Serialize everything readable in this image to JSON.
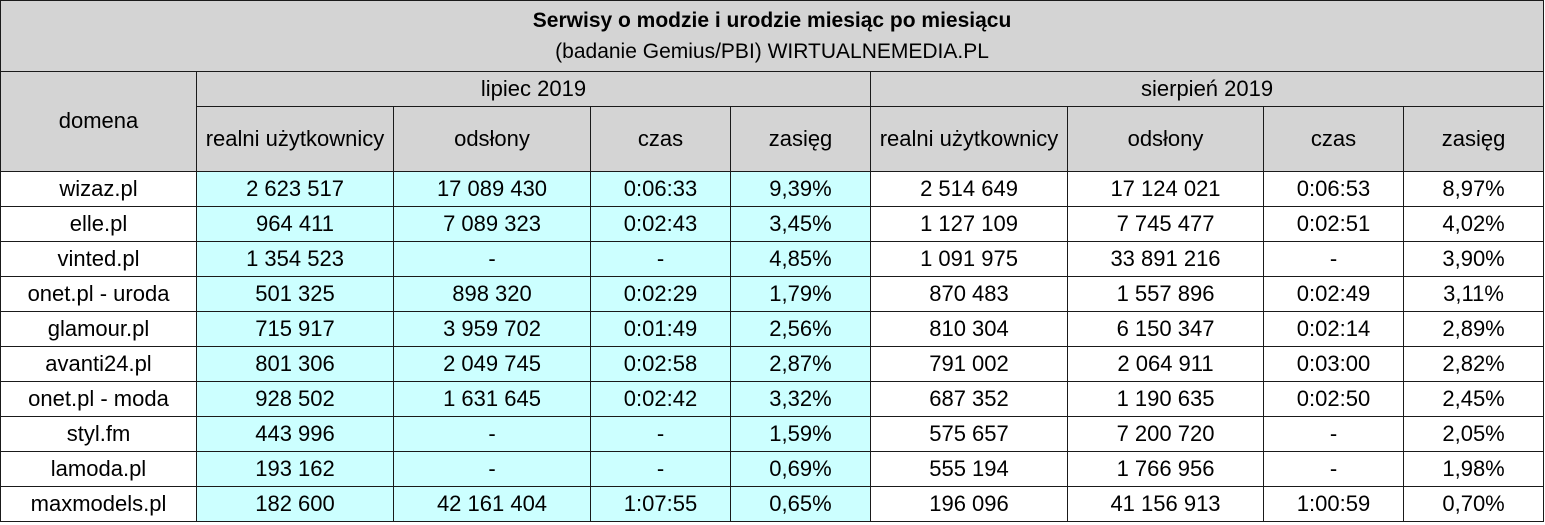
{
  "title": "Serwisy o modzie i urodzie miesiąc po miesiącu",
  "subtitle": "(badanie Gemius/PBI) WIRTUALNEMEDIA.PL",
  "header": {
    "domain": "domena",
    "months": [
      "lipiec 2019",
      "sierpień 2019"
    ],
    "columns": [
      "realni użytkownicy",
      "odsłony",
      "czas",
      "zasięg"
    ]
  },
  "rows": [
    {
      "domain": "wizaz.pl",
      "jul": [
        "2 623 517",
        "17 089 430",
        "0:06:33",
        "9,39%"
      ],
      "aug": [
        "2 514 649",
        "17 124 021",
        "0:06:53",
        "8,97%"
      ]
    },
    {
      "domain": "elle.pl",
      "jul": [
        "964 411",
        "7 089 323",
        "0:02:43",
        "3,45%"
      ],
      "aug": [
        "1 127 109",
        "7 745 477",
        "0:02:51",
        "4,02%"
      ]
    },
    {
      "domain": "vinted.pl",
      "jul": [
        "1 354 523",
        "-",
        "-",
        "4,85%"
      ],
      "aug": [
        "1 091 975",
        "33 891 216",
        "-",
        "3,90%"
      ]
    },
    {
      "domain": "onet.pl - uroda",
      "jul": [
        "501 325",
        "898 320",
        "0:02:29",
        "1,79%"
      ],
      "aug": [
        "870 483",
        "1 557 896",
        "0:02:49",
        "3,11%"
      ]
    },
    {
      "domain": "glamour.pl",
      "jul": [
        "715 917",
        "3 959 702",
        "0:01:49",
        "2,56%"
      ],
      "aug": [
        "810 304",
        "6 150 347",
        "0:02:14",
        "2,89%"
      ]
    },
    {
      "domain": "avanti24.pl",
      "jul": [
        "801 306",
        "2 049 745",
        "0:02:58",
        "2,87%"
      ],
      "aug": [
        "791 002",
        "2 064 911",
        "0:03:00",
        "2,82%"
      ]
    },
    {
      "domain": "onet.pl - moda",
      "jul": [
        "928 502",
        "1 631 645",
        "0:02:42",
        "3,32%"
      ],
      "aug": [
        "687 352",
        "1 190 635",
        "0:02:50",
        "2,45%"
      ]
    },
    {
      "domain": "styl.fm",
      "jul": [
        "443 996",
        "-",
        "-",
        "1,59%"
      ],
      "aug": [
        "575 657",
        "7 200 720",
        "-",
        "2,05%"
      ]
    },
    {
      "domain": "lamoda.pl",
      "jul": [
        "193 162",
        "-",
        "-",
        "0,69%"
      ],
      "aug": [
        "555 194",
        "1 766 956",
        "-",
        "1,98%"
      ]
    },
    {
      "domain": "maxmodels.pl",
      "jul": [
        "182 600",
        "42 161 404",
        "1:07:55",
        "0,65%"
      ],
      "aug": [
        "196 096",
        "41 156 913",
        "1:00:59",
        "0,70%"
      ]
    }
  ],
  "colors": {
    "header_bg": "#d4d4d4",
    "july_bg": "#ccffff",
    "border": "#1a1a1a"
  }
}
